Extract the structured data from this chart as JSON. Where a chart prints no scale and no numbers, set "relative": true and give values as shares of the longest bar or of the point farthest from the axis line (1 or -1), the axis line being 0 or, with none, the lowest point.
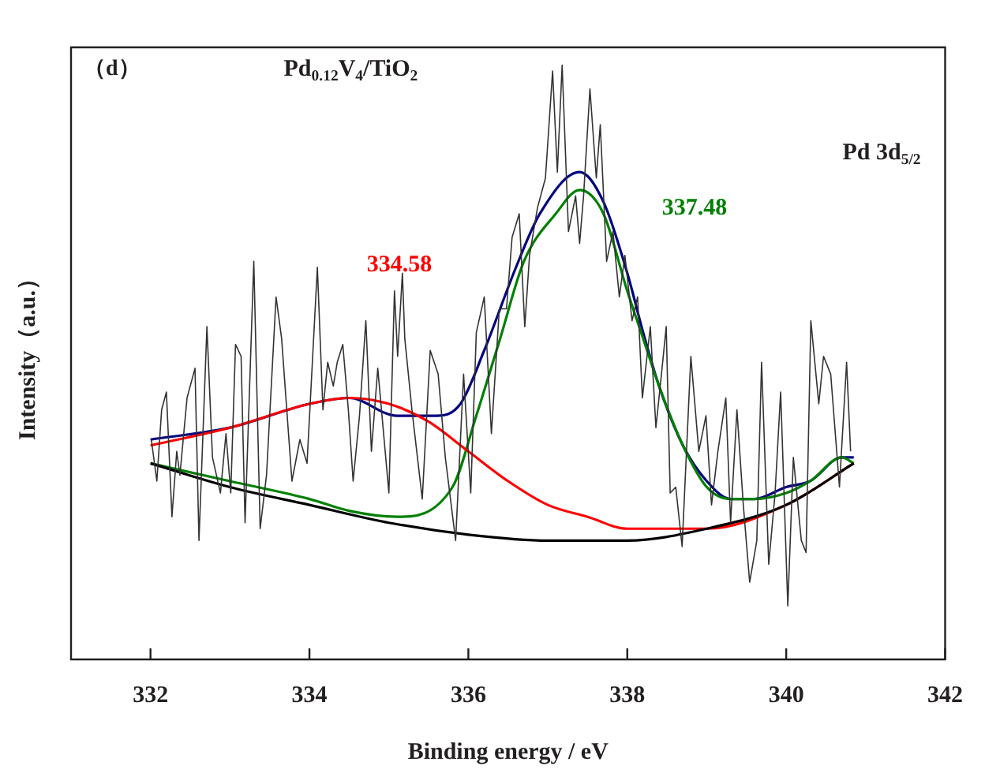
{
  "chart_data": {
    "type": "line",
    "title": "Pd$_{0.12}$V$_{4}$/TiO$_{2}$",
    "xlabel": "Binding energy / eV",
    "ylabel": "Intensity（a.u.）",
    "relative": true,
    "xlim": [
      331,
      342
    ],
    "xticks": [
      332,
      334,
      336,
      338,
      340,
      342
    ],
    "grid": false,
    "legend": false,
    "marker": "none",
    "line_style": "solid",
    "annotations": [
      "（d）",
      "Pd 3d$_{5/2}$",
      "334.58",
      "337.48"
    ],
    "series": [
      {
        "color": "#333333",
        "x": [
          332.01,
          332.08,
          332.14,
          332.2,
          332.27,
          332.33,
          332.37,
          332.46,
          332.56,
          332.61,
          332.71,
          332.78,
          332.88,
          332.95,
          333.01,
          333.07,
          333.14,
          333.19,
          333.3,
          333.38,
          333.46,
          333.58,
          333.65,
          333.78,
          333.88,
          333.97,
          334.1,
          334.17,
          334.23,
          334.3,
          334.35,
          334.42,
          334.49,
          334.55,
          334.63,
          334.71,
          334.78,
          334.86,
          335.0,
          335.07,
          335.11,
          335.17,
          335.2,
          335.29,
          335.42,
          335.52,
          335.62,
          335.71,
          335.84,
          335.94,
          336.03,
          336.1,
          336.2,
          336.29,
          336.39,
          336.48,
          336.55,
          336.64,
          336.71,
          336.77,
          336.87,
          336.97,
          337.06,
          337.12,
          337.18,
          337.26,
          337.35,
          337.4,
          337.45,
          337.53,
          337.61,
          337.66,
          337.74,
          337.82,
          337.9,
          337.97,
          338.06,
          338.13,
          338.19,
          338.29,
          338.36,
          338.43,
          338.49,
          338.54,
          338.61,
          338.69,
          338.8,
          338.9,
          338.99,
          339.06,
          339.14,
          339.24,
          339.3,
          339.38,
          339.46,
          339.54,
          339.63,
          339.69,
          339.78,
          339.86,
          339.93,
          340.02,
          340.09,
          340.19,
          340.25,
          340.31,
          340.41,
          340.47,
          340.56,
          340.67,
          340.76,
          340.81
        ],
        "values": [
          0.37,
          0.3,
          0.42,
          0.45,
          0.24,
          0.35,
          0.31,
          0.44,
          0.49,
          0.2,
          0.56,
          0.34,
          0.28,
          0.38,
          0.28,
          0.53,
          0.51,
          0.23,
          0.67,
          0.22,
          0.31,
          0.61,
          0.54,
          0.3,
          0.37,
          0.33,
          0.66,
          0.42,
          0.5,
          0.46,
          0.5,
          0.53,
          0.42,
          0.3,
          0.41,
          0.57,
          0.35,
          0.49,
          0.28,
          0.62,
          0.51,
          0.65,
          0.54,
          0.42,
          0.27,
          0.52,
          0.48,
          0.34,
          0.2,
          0.48,
          0.28,
          0.55,
          0.61,
          0.38,
          0.59,
          0.59,
          0.71,
          0.75,
          0.56,
          0.68,
          0.76,
          0.81,
          0.99,
          0.82,
          1.0,
          0.72,
          0.78,
          0.7,
          0.78,
          0.96,
          0.81,
          0.9,
          0.67,
          0.72,
          0.61,
          0.68,
          0.57,
          0.61,
          0.44,
          0.56,
          0.39,
          0.48,
          0.56,
          0.28,
          0.29,
          0.19,
          0.51,
          0.35,
          0.41,
          0.26,
          0.35,
          0.44,
          0.23,
          0.42,
          0.26,
          0.13,
          0.2,
          0.5,
          0.16,
          0.28,
          0.45,
          0.09,
          0.34,
          0.2,
          0.18,
          0.57,
          0.43,
          0.51,
          0.48,
          0.29,
          0.5,
          0.35
        ]
      },
      {
        "color": "#000000",
        "x": [
          332.0,
          333,
          334,
          335,
          336,
          337,
          338,
          339,
          340,
          340.85
        ],
        "values": [
          0.33,
          0.29,
          0.26,
          0.23,
          0.21,
          0.2,
          0.2,
          0.22,
          0.26,
          0.33
        ]
      },
      {
        "color": "#ff0000",
        "x": [
          332.0,
          333,
          334,
          334.5,
          335,
          335.5,
          336,
          336.5,
          337,
          337.5,
          338,
          339,
          340,
          340.85
        ],
        "values": [
          0.36,
          0.39,
          0.43,
          0.44,
          0.43,
          0.4,
          0.35,
          0.3,
          0.26,
          0.24,
          0.22,
          0.22,
          0.26,
          0.33
        ]
      },
      {
        "color": "#008000",
        "x": [
          332.0,
          333,
          334,
          334.5,
          335.1,
          335.8,
          336.1,
          336.4,
          336.7,
          337.1,
          337.4,
          337.7,
          338.0,
          338.2,
          338.4,
          338.7,
          339.0,
          339.3,
          339.6,
          340.0,
          340.3,
          340.7,
          340.85
        ],
        "values": [
          0.33,
          0.3,
          0.27,
          0.25,
          0.24,
          0.29,
          0.41,
          0.54,
          0.67,
          0.75,
          0.79,
          0.75,
          0.62,
          0.54,
          0.46,
          0.36,
          0.29,
          0.27,
          0.27,
          0.28,
          0.3,
          0.34,
          0.33
        ]
      },
      {
        "color": "#000080",
        "x": [
          332.0,
          333,
          334,
          334.5,
          335.1,
          335.6,
          335.9,
          336.2,
          336.6,
          336.9,
          337.4,
          337.7,
          338.0,
          338.2,
          338.4,
          338.7,
          339.0,
          339.3,
          339.6,
          340.0,
          340.3,
          340.7,
          340.85
        ],
        "values": [
          0.37,
          0.39,
          0.43,
          0.44,
          0.41,
          0.41,
          0.43,
          0.52,
          0.66,
          0.75,
          0.82,
          0.77,
          0.65,
          0.55,
          0.46,
          0.36,
          0.3,
          0.27,
          0.27,
          0.29,
          0.3,
          0.34,
          0.34
        ]
      }
    ]
  }
}
